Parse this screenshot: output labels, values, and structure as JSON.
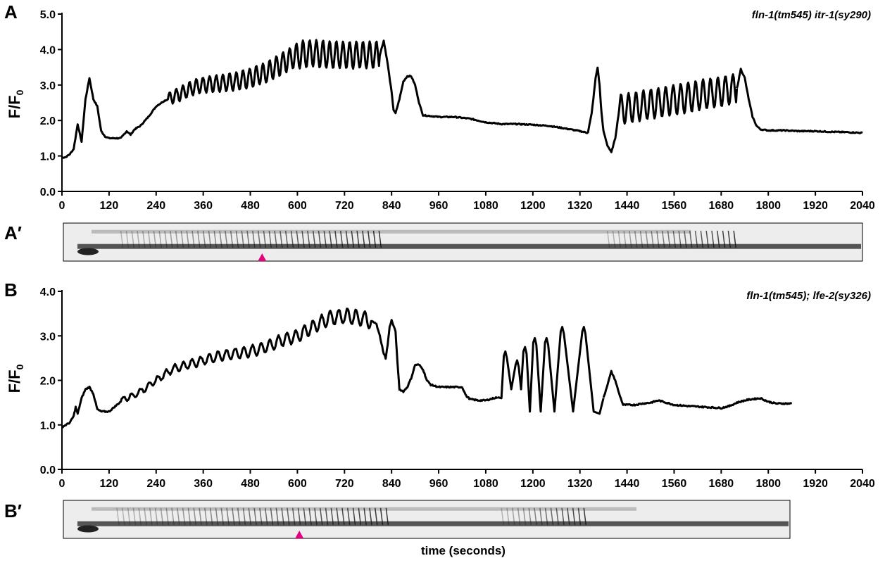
{
  "chart_data": [
    {
      "panel": "A",
      "type": "line",
      "genotype": "fln-1(tm545) itr-1(sy290)",
      "ylabel": "F/F0",
      "ylim": [
        0,
        5
      ],
      "yticks": [
        "0.0",
        "1.0",
        "2.0",
        "3.0",
        "4.0",
        "5.0"
      ],
      "xlim": [
        0,
        2040
      ],
      "xticks": [
        "0",
        "120",
        "240",
        "360",
        "480",
        "600",
        "720",
        "840",
        "960",
        "1080",
        "1200",
        "1320",
        "1440",
        "1560",
        "1680",
        "1800",
        "1920",
        "2040"
      ],
      "segments": [
        {
          "x": [
            0,
            10,
            20,
            30,
            40,
            50,
            60,
            70,
            80,
            90,
            100,
            110,
            120,
            150,
            165,
            175,
            185,
            200,
            220,
            240,
            260,
            280,
            300,
            320,
            340,
            360,
            400,
            440,
            480,
            520,
            560,
            600,
            640,
            680,
            720,
            760,
            800,
            810
          ],
          "y": [
            0.95,
            0.97,
            1.05,
            1.2,
            1.9,
            1.4,
            2.6,
            3.2,
            2.6,
            2.4,
            1.7,
            1.55,
            1.5,
            1.5,
            1.7,
            1.6,
            1.75,
            1.85,
            2.1,
            2.4,
            2.55,
            2.65,
            2.75,
            2.85,
            2.95,
            3.0,
            3.05,
            3.1,
            3.2,
            3.35,
            3.6,
            3.85,
            3.9,
            3.85,
            3.85,
            3.85,
            3.85,
            3.85
          ]
        },
        {
          "x": [
            810,
            820,
            830,
            840,
            845,
            850,
            860,
            870,
            880,
            890,
            900,
            910,
            920,
            960,
            1000,
            1040,
            1080,
            1120,
            1160,
            1200,
            1240,
            1280,
            1320,
            1340
          ],
          "y": [
            3.85,
            4.25,
            3.6,
            2.8,
            2.3,
            2.2,
            2.6,
            3.1,
            3.25,
            3.25,
            3.0,
            2.5,
            2.15,
            2.1,
            2.1,
            2.05,
            1.95,
            1.9,
            1.9,
            1.88,
            1.85,
            1.78,
            1.7,
            1.65
          ]
        },
        {
          "x": [
            1340,
            1350,
            1360,
            1365,
            1370,
            1375,
            1380,
            1390,
            1400,
            1410,
            1420,
            1720
          ],
          "y": [
            1.65,
            2.2,
            3.2,
            3.5,
            3.0,
            2.2,
            1.7,
            1.3,
            1.1,
            1.5,
            2.3,
            2.9
          ]
        },
        {
          "x": [
            1720,
            1730,
            1740,
            1750,
            1760,
            1770,
            1780,
            1800,
            1840,
            1880,
            1920,
            1960,
            2000,
            2040
          ],
          "y": [
            2.9,
            3.45,
            3.2,
            2.6,
            2.1,
            1.85,
            1.75,
            1.72,
            1.72,
            1.7,
            1.7,
            1.68,
            1.67,
            1.65
          ]
        }
      ],
      "kymograph": {
        "label": "A′",
        "marker_x": 510,
        "marker_color": "#e6007e"
      }
    },
    {
      "panel": "B",
      "type": "line",
      "genotype": "fln-1(tm545); lfe-2(sy326)",
      "ylabel": "F/F0",
      "ylim": [
        0,
        4
      ],
      "yticks": [
        "0.0",
        "1.0",
        "2.0",
        "3.0",
        "4.0"
      ],
      "xlim": [
        0,
        2040
      ],
      "xticks": [
        "0",
        "120",
        "240",
        "360",
        "480",
        "600",
        "720",
        "840",
        "960",
        "1080",
        "1200",
        "1320",
        "1440",
        "1560",
        "1680",
        "1800",
        "1920",
        "2040"
      ],
      "xlabel": "time (seconds)",
      "segments": [
        {
          "x": [
            0,
            10,
            20,
            30,
            35,
            40,
            50,
            60,
            70,
            80,
            90,
            100,
            120,
            140,
            160,
            180,
            200,
            240,
            280,
            320,
            360,
            400,
            440,
            480,
            520,
            560,
            600,
            640,
            680,
            720,
            760,
            800
          ],
          "y": [
            0.95,
            1.0,
            1.05,
            1.2,
            1.4,
            1.25,
            1.6,
            1.8,
            1.85,
            1.7,
            1.35,
            1.3,
            1.3,
            1.45,
            1.6,
            1.65,
            1.75,
            2.0,
            2.25,
            2.35,
            2.45,
            2.55,
            2.6,
            2.65,
            2.75,
            2.9,
            3.0,
            3.2,
            3.4,
            3.45,
            3.4,
            3.3
          ]
        },
        {
          "x": [
            800,
            810,
            820,
            825,
            830,
            835,
            840,
            850,
            855,
            860,
            870,
            880,
            890,
            900,
            910,
            920,
            930,
            940,
            960,
            1000,
            1020,
            1030,
            1040,
            1060,
            1080,
            1100,
            1110
          ],
          "y": [
            3.3,
            3.0,
            2.6,
            2.5,
            2.8,
            3.2,
            3.35,
            3.1,
            2.4,
            1.8,
            1.75,
            1.85,
            2.05,
            2.35,
            2.35,
            2.25,
            2.0,
            1.9,
            1.85,
            1.85,
            1.85,
            1.65,
            1.58,
            1.55,
            1.55,
            1.6,
            1.62
          ]
        },
        {
          "x": [
            1380,
            1390,
            1400,
            1410,
            1420,
            1430,
            1440,
            1460,
            1480,
            1500,
            1520,
            1560,
            1600,
            1640,
            1680,
            1700,
            1720,
            1740,
            1760,
            1780,
            1800,
            1820,
            1840,
            1860
          ],
          "y": [
            1.6,
            1.9,
            2.2,
            2.0,
            1.7,
            1.45,
            1.45,
            1.45,
            1.48,
            1.5,
            1.55,
            1.45,
            1.42,
            1.4,
            1.38,
            1.42,
            1.5,
            1.55,
            1.58,
            1.6,
            1.52,
            1.48,
            1.48,
            1.48
          ]
        }
      ],
      "peaks": [
        {
          "x": 1130,
          "y": 2.65
        },
        {
          "x": 1160,
          "y": 2.45
        },
        {
          "x": 1180,
          "y": 2.75
        },
        {
          "x": 1205,
          "y": 2.95
        },
        {
          "x": 1235,
          "y": 2.95
        },
        {
          "x": 1275,
          "y": 3.2
        },
        {
          "x": 1330,
          "y": 3.2
        }
      ],
      "kymograph": {
        "label": "B′",
        "marker_x": 605,
        "marker_color": "#e6007e"
      }
    }
  ],
  "colors": {
    "trace": "#000000",
    "marker": "#e6007e",
    "kymo_bg": "#ededed"
  }
}
